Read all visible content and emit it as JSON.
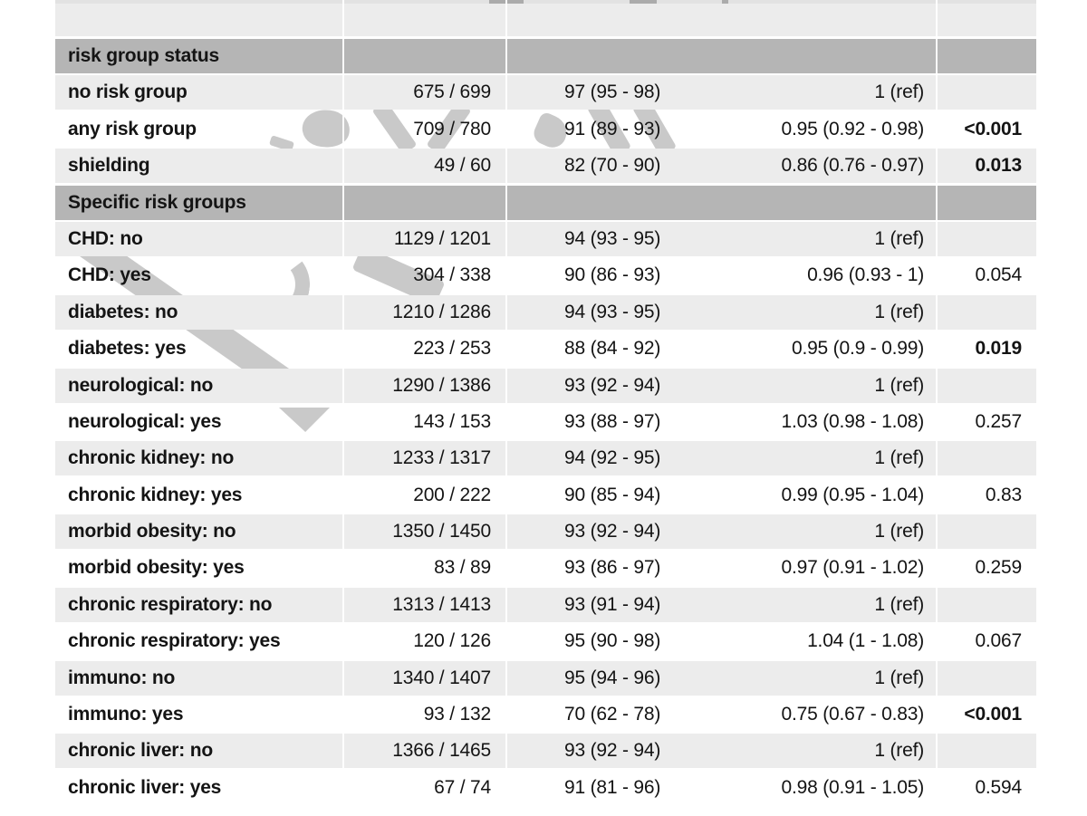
{
  "colors": {
    "row_shaded": "#ECECEC",
    "section_band": "#B5B5B5",
    "watermark": "#C9C9C9",
    "top_strip": "#E2E2E2",
    "strip_fragment": "#ABABAB",
    "text": "#141414"
  },
  "table": {
    "sections": [
      {
        "header": "risk group status",
        "rows": [
          {
            "label": "no risk group",
            "events": "675 / 699",
            "pct": "97 (95 - 98)",
            "ratio": "1 (ref)",
            "p": "",
            "p_bold": false
          },
          {
            "label": "any risk group",
            "events": "709 / 780",
            "pct": "91 (89 - 93)",
            "ratio": "0.95 (0.92 - 0.98)",
            "p": "<0.001",
            "p_bold": true
          },
          {
            "label": "shielding",
            "events": "49 / 60",
            "pct": "82 (70 - 90)",
            "ratio": "0.86 (0.76 - 0.97)",
            "p": "0.013",
            "p_bold": true
          }
        ]
      },
      {
        "header": "Specific risk groups",
        "rows": [
          {
            "label": "CHD: no",
            "events": "1129 / 1201",
            "pct": "94 (93 - 95)",
            "ratio": "1 (ref)",
            "p": "",
            "p_bold": false
          },
          {
            "label": "CHD: yes",
            "events": "304 / 338",
            "pct": "90 (86 - 93)",
            "ratio": "0.96 (0.93 - 1)",
            "p": "0.054",
            "p_bold": false
          },
          {
            "label": "diabetes: no",
            "events": "1210 / 1286",
            "pct": "94 (93 - 95)",
            "ratio": "1 (ref)",
            "p": "",
            "p_bold": false
          },
          {
            "label": "diabetes: yes",
            "events": "223 / 253",
            "pct": "88 (84 - 92)",
            "ratio": "0.95 (0.9 - 0.99)",
            "p": "0.019",
            "p_bold": true
          },
          {
            "label": "neurological: no",
            "events": "1290 / 1386",
            "pct": "93 (92 - 94)",
            "ratio": "1 (ref)",
            "p": "",
            "p_bold": false
          },
          {
            "label": "neurological: yes",
            "events": "143 / 153",
            "pct": "93 (88 - 97)",
            "ratio": "1.03 (0.98 - 1.08)",
            "p": "0.257",
            "p_bold": false
          },
          {
            "label": "chronic kidney: no",
            "events": "1233 / 1317",
            "pct": "94 (92 - 95)",
            "ratio": "1 (ref)",
            "p": "",
            "p_bold": false
          },
          {
            "label": "chronic kidney: yes",
            "events": "200 / 222",
            "pct": "90 (85 - 94)",
            "ratio": "0.99 (0.95 - 1.04)",
            "p": "0.83",
            "p_bold": false
          },
          {
            "label": "morbid obesity: no",
            "events": "1350 / 1450",
            "pct": "93 (92 - 94)",
            "ratio": "1 (ref)",
            "p": "",
            "p_bold": false
          },
          {
            "label": "morbid obesity: yes",
            "events": "83 / 89",
            "pct": "93 (86 - 97)",
            "ratio": "0.97 (0.91 - 1.02)",
            "p": "0.259",
            "p_bold": false
          },
          {
            "label": "chronic respiratory: no",
            "events": "1313 / 1413",
            "pct": "93 (91 - 94)",
            "ratio": "1 (ref)",
            "p": "",
            "p_bold": false
          },
          {
            "label": "chronic respiratory: yes",
            "events": "120 / 126",
            "pct": "95 (90 - 98)",
            "ratio": "1.04 (1 - 1.08)",
            "p": "0.067",
            "p_bold": false
          },
          {
            "label": "immuno: no",
            "events": "1340 / 1407",
            "pct": "95 (94 - 96)",
            "ratio": "1 (ref)",
            "p": "",
            "p_bold": false
          },
          {
            "label": "immuno: yes",
            "events": "93 / 132",
            "pct": "70 (62 - 78)",
            "ratio": "0.75 (0.67 - 0.83)",
            "p": "<0.001",
            "p_bold": true
          },
          {
            "label": "chronic liver: no",
            "events": "1366 / 1465",
            "pct": "93 (92 - 94)",
            "ratio": "1 (ref)",
            "p": "",
            "p_bold": false
          },
          {
            "label": "chronic liver: yes",
            "events": "67 / 74",
            "pct": "91 (81 - 96)",
            "ratio": "0.98 (0.91 - 1.05)",
            "p": "0.594",
            "p_bold": false
          }
        ]
      }
    ]
  }
}
